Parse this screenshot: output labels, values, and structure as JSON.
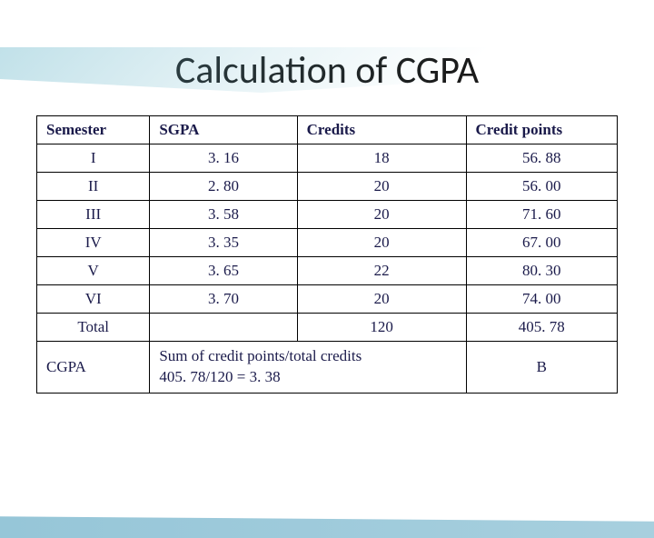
{
  "title": "Calculation of CGPA",
  "table": {
    "columns": [
      "Semester",
      "SGPA",
      "Credits",
      "Credit points"
    ],
    "rows": [
      [
        "I",
        "3. 16",
        "18",
        "56. 88"
      ],
      [
        "II",
        "2. 80",
        "20",
        "56. 00"
      ],
      [
        "III",
        "3. 58",
        "20",
        "71. 60"
      ],
      [
        "IV",
        "3. 35",
        "20",
        "67. 00"
      ],
      [
        "V",
        "3. 65",
        "22",
        "80. 30"
      ],
      [
        "VI",
        "3. 70",
        "20",
        "74. 00"
      ]
    ],
    "total_row": {
      "label": "Total",
      "credits": "120",
      "points": "405. 78"
    },
    "cgpa_row": {
      "label": "CGPA",
      "formula_line1": "Sum of credit points/total credits",
      "formula_line2": "405. 78/120  = 3. 38",
      "grade": "B"
    }
  },
  "style": {
    "title_fontsize": 42,
    "title_color": "#1a1a1a",
    "cell_fontsize": 17,
    "cell_text_color": "#1a1a4a",
    "border_color": "#000000",
    "grade_color": "#c00000",
    "grade_fontsize": 30,
    "background_color": "#ffffff",
    "decoration_color": "#6ab4c8"
  }
}
